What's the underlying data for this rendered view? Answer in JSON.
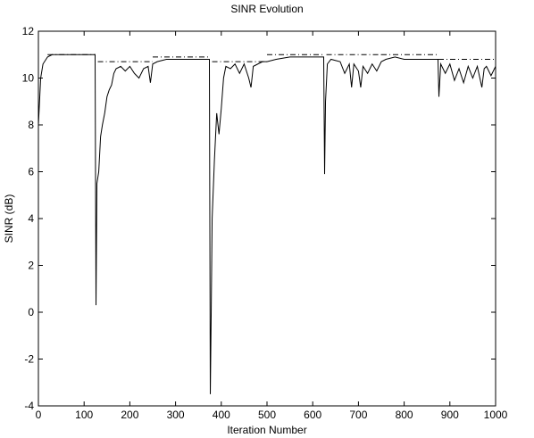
{
  "chart_data": {
    "type": "line",
    "title": "SINR Evolution",
    "x_label": "Iteration Number",
    "y_label": "SINR (dB)",
    "xlim": [
      0,
      1000
    ],
    "ylim": [
      -4,
      12
    ],
    "xticks": [
      0,
      100,
      200,
      300,
      400,
      500,
      600,
      700,
      800,
      900,
      1000
    ],
    "yticks": [
      -4,
      -2,
      0,
      2,
      4,
      6,
      8,
      10,
      12
    ],
    "series": [
      {
        "color": "#000000",
        "style": "solid",
        "x": [
          0,
          5,
          10,
          20,
          30,
          50,
          80,
          100,
          124,
          126,
          128,
          132,
          136,
          140,
          145,
          150,
          155,
          160,
          165,
          170,
          180,
          190,
          200,
          210,
          220,
          230,
          240,
          245,
          250,
          260,
          280,
          300,
          320,
          340,
          360,
          374,
          376,
          378,
          380,
          385,
          390,
          395,
          400,
          405,
          410,
          420,
          430,
          440,
          450,
          460,
          465,
          470,
          480,
          490,
          500,
          520,
          550,
          580,
          610,
          624,
          626,
          628,
          632,
          640,
          660,
          670,
          680,
          685,
          690,
          700,
          705,
          710,
          720,
          730,
          740,
          750,
          760,
          780,
          800,
          820,
          840,
          860,
          874,
          876,
          880,
          890,
          900,
          910,
          920,
          930,
          940,
          950,
          960,
          970,
          975,
          980,
          990,
          1000
        ],
        "values": [
          8.0,
          10.0,
          10.6,
          10.9,
          11.0,
          11.0,
          11.0,
          11.0,
          11.0,
          0.3,
          5.5,
          6.0,
          7.5,
          8.0,
          8.5,
          9.2,
          9.5,
          9.7,
          10.2,
          10.4,
          10.5,
          10.3,
          10.5,
          10.2,
          10.0,
          10.4,
          10.5,
          9.8,
          10.6,
          10.7,
          10.8,
          10.8,
          10.8,
          10.8,
          10.8,
          10.8,
          -3.5,
          0,
          4.0,
          6.5,
          8.5,
          7.6,
          8.7,
          10.0,
          10.5,
          10.4,
          10.6,
          10.2,
          10.6,
          10.0,
          9.6,
          10.5,
          10.6,
          10.7,
          10.7,
          10.8,
          10.9,
          10.9,
          10.9,
          10.9,
          5.9,
          9.0,
          10.6,
          10.8,
          10.7,
          10.2,
          10.6,
          9.6,
          10.6,
          10.3,
          9.6,
          10.5,
          10.2,
          10.6,
          10.3,
          10.7,
          10.8,
          10.9,
          10.8,
          10.8,
          10.8,
          10.8,
          10.8,
          9.2,
          10.6,
          10.2,
          10.6,
          9.9,
          10.4,
          9.8,
          10.5,
          10.0,
          10.5,
          9.6,
          10.4,
          10.5,
          10.1,
          10.5
        ]
      },
      {
        "color": "#000000",
        "style": "dashdot",
        "x": [
          20,
          125,
          127,
          130,
          250,
          250,
          250,
          375,
          377,
          380,
          500,
          500,
          500,
          625,
          627,
          630,
          750,
          750,
          750,
          875,
          875,
          875,
          1000
        ],
        "values": [
          11,
          11,
          null,
          10.7,
          10.7,
          null,
          10.9,
          10.9,
          null,
          10.7,
          10.7,
          null,
          11,
          11,
          null,
          11,
          11,
          null,
          11,
          11,
          null,
          10.8,
          10.8
        ]
      }
    ]
  }
}
